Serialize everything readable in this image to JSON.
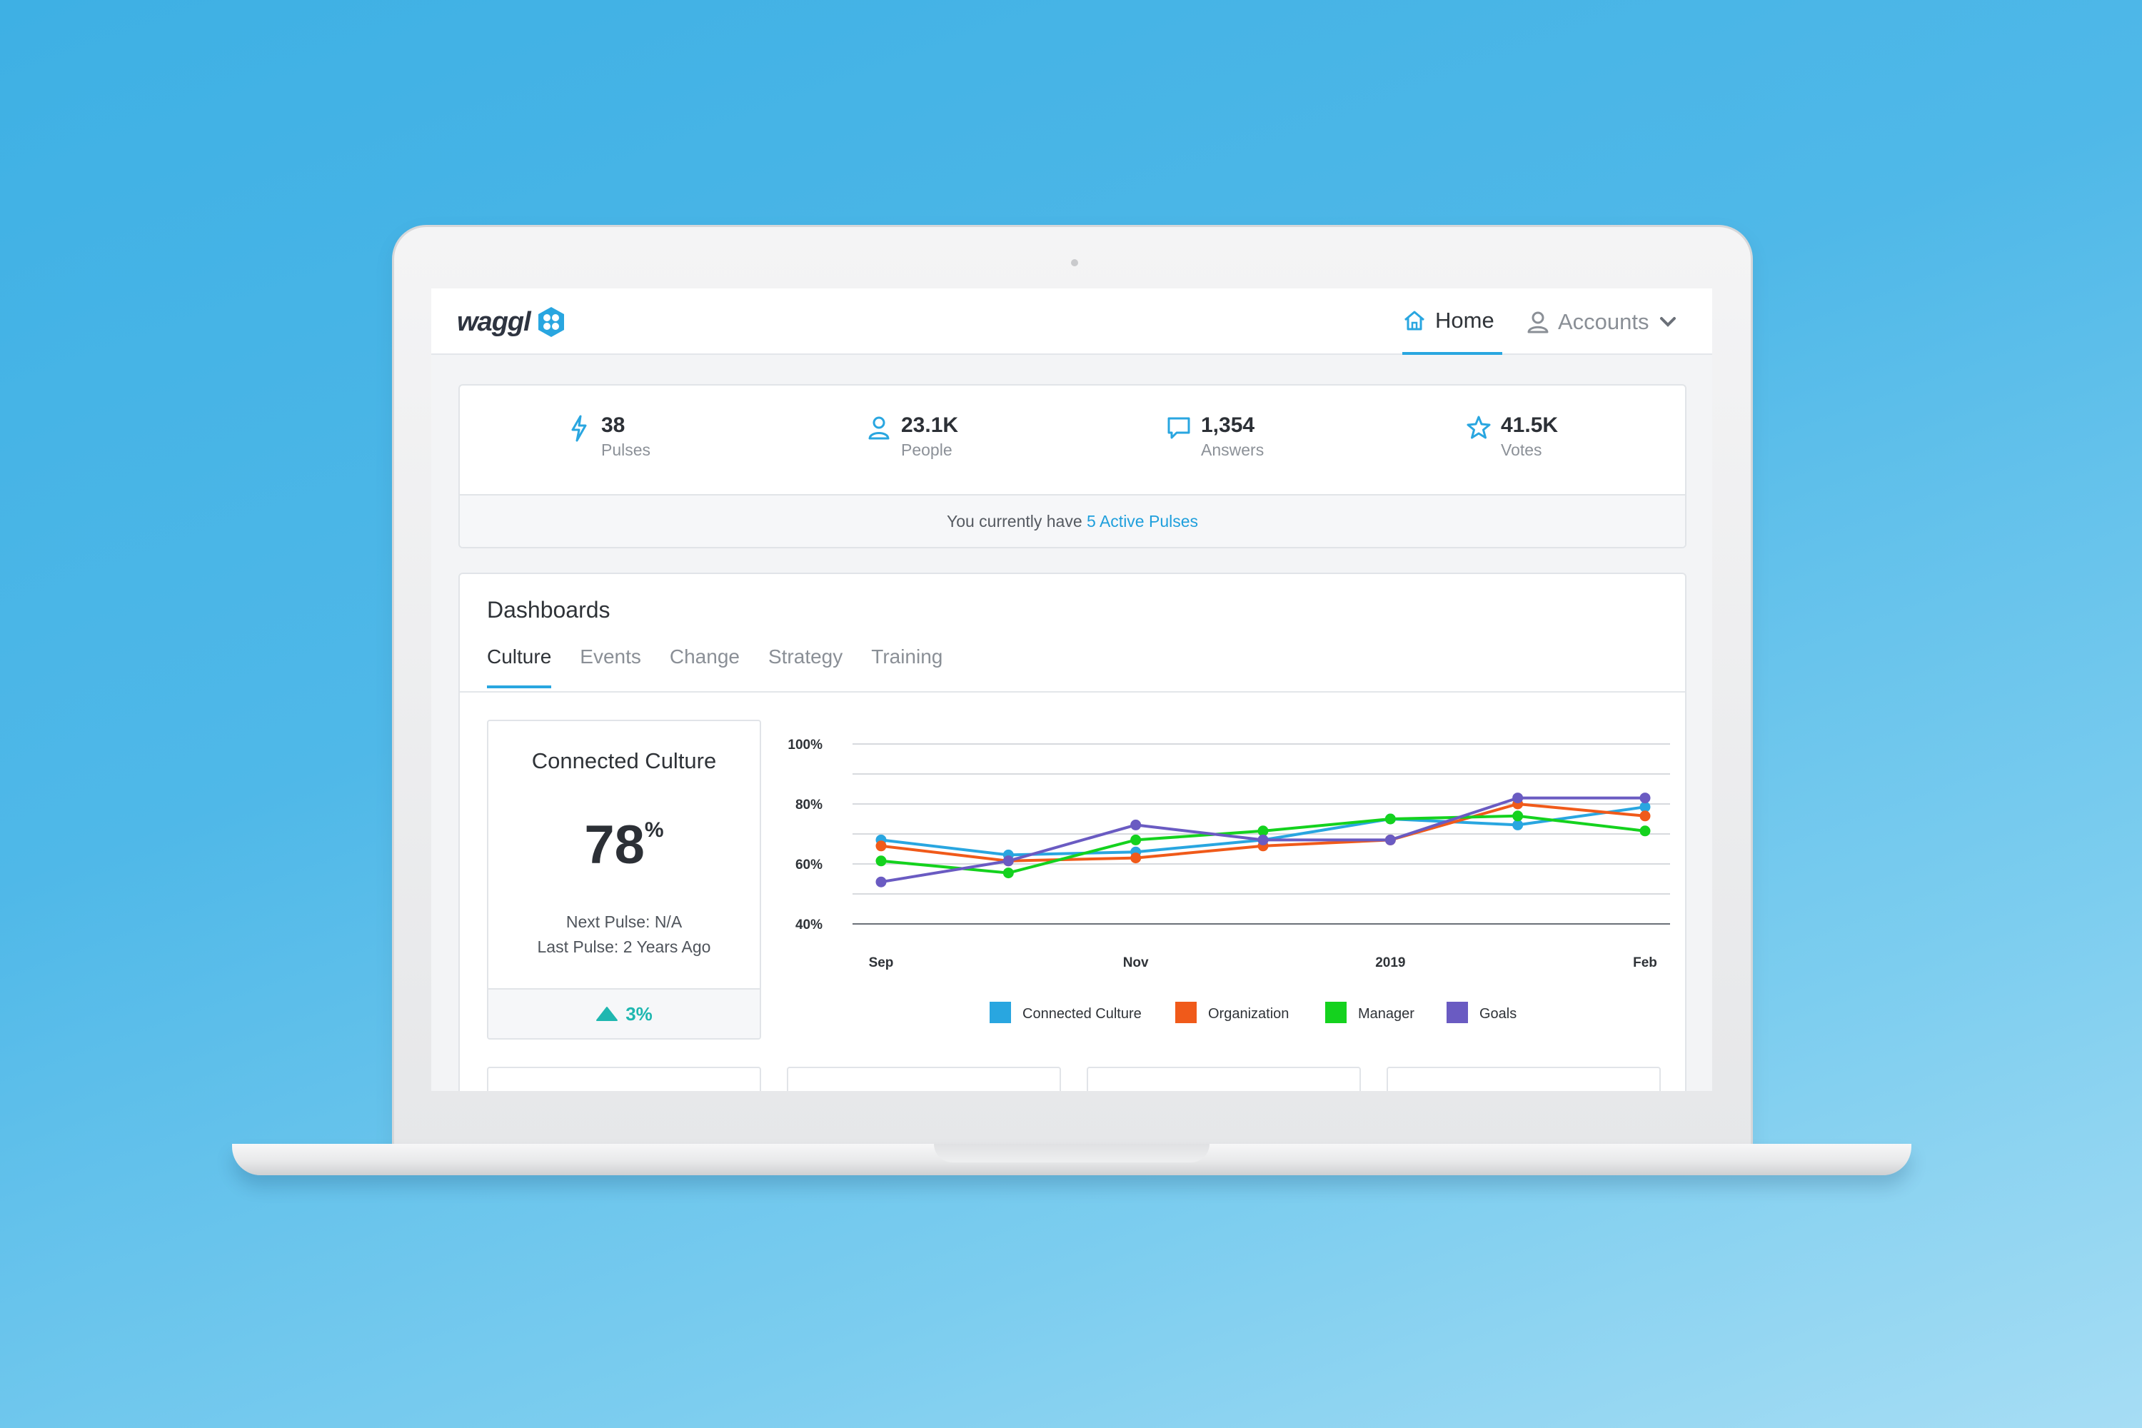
{
  "app": {
    "logo_text": "waggl"
  },
  "nav": {
    "home": {
      "label": "Home",
      "icon": "home-icon"
    },
    "accounts": {
      "label": "Accounts",
      "icon": "user-icon"
    }
  },
  "stats": [
    {
      "value": "38",
      "label": "Pulses",
      "icon": "lightning-icon"
    },
    {
      "value": "23.1K",
      "label": "People",
      "icon": "person-icon"
    },
    {
      "value": "1,354",
      "label": "Answers",
      "icon": "speech-bubble-icon"
    },
    {
      "value": "41.5K",
      "label": "Votes",
      "icon": "star-icon"
    }
  ],
  "active_pulses": {
    "prefix": "You currently have ",
    "link": "5 Active Pulses"
  },
  "dashboards": {
    "title": "Dashboards",
    "tabs": [
      "Culture",
      "Events",
      "Change",
      "Strategy",
      "Training"
    ],
    "active_tab": "Culture"
  },
  "metric": {
    "title": "Connected Culture",
    "value": "78",
    "unit": "%",
    "next_pulse": "Next Pulse: N/A",
    "last_pulse": "Last Pulse: 2 Years Ago",
    "change": "3%",
    "trend": "up"
  },
  "colors": {
    "accent": "#29a6e0",
    "connected_culture": "#29a6e0",
    "organization": "#f05a1a",
    "manager": "#14d21e",
    "goals": "#6a5bc2",
    "trend_up": "#1fb7b0"
  },
  "chart_data": {
    "type": "line",
    "x": [
      "Sep",
      "",
      "Nov",
      "",
      "2019",
      "",
      "Feb"
    ],
    "x_tick_labels": [
      "Sep",
      "Nov",
      "2019",
      "Feb"
    ],
    "y_tick_labels": [
      "100%",
      "80%",
      "60%",
      "40%"
    ],
    "ylim": [
      40,
      100
    ],
    "series": [
      {
        "name": "Connected Culture",
        "color": "#29a6e0",
        "values": [
          68,
          63,
          64,
          68,
          75,
          73,
          79
        ]
      },
      {
        "name": "Organization",
        "color": "#f05a1a",
        "values": [
          66,
          61,
          62,
          66,
          68,
          80,
          76
        ]
      },
      {
        "name": "Manager",
        "color": "#14d21e",
        "values": [
          61,
          57,
          68,
          71,
          75,
          76,
          71
        ]
      },
      {
        "name": "Goals",
        "color": "#6a5bc2",
        "values": [
          54,
          61,
          73,
          68,
          68,
          82,
          82
        ]
      }
    ],
    "grid": true,
    "legend_position": "bottom"
  }
}
